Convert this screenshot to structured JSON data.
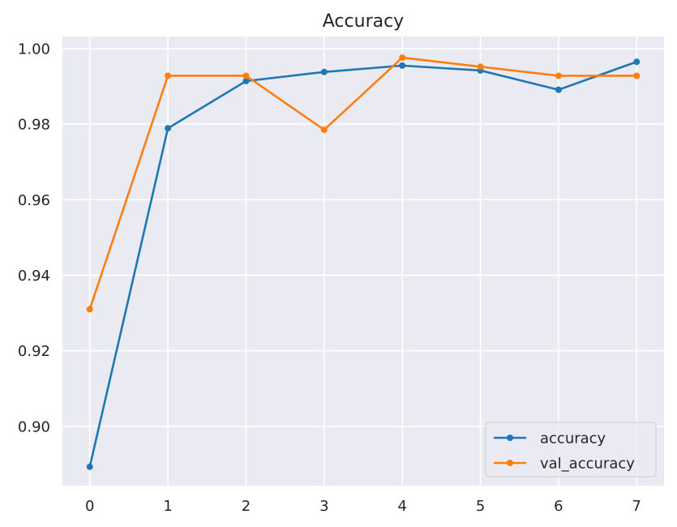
{
  "chart_data": {
    "type": "line",
    "title": "Accuracy",
    "xlabel": "",
    "ylabel": "",
    "x": [
      0,
      1,
      2,
      3,
      4,
      5,
      6,
      7
    ],
    "xlim": [
      -0.35,
      7.35
    ],
    "ylim": [
      0.8843,
      1.0032
    ],
    "x_ticks": [
      0,
      1,
      2,
      3,
      4,
      5,
      6,
      7
    ],
    "y_ticks": [
      0.9,
      0.92,
      0.94,
      0.96,
      0.98,
      1.0
    ],
    "y_tick_labels": [
      "0.90",
      "0.92",
      "0.94",
      "0.96",
      "0.98",
      "1.00"
    ],
    "grid": true,
    "legend_position": "bottom-right",
    "series": [
      {
        "name": "accuracy",
        "color": "#1f77b4",
        "values": [
          0.8893,
          0.9789,
          0.9914,
          0.9938,
          0.9955,
          0.9942,
          0.9891,
          0.9965
        ]
      },
      {
        "name": "val_accuracy",
        "color": "#ff7f0e",
        "values": [
          0.931,
          0.9928,
          0.9928,
          0.9785,
          0.9976,
          0.9952,
          0.9928,
          0.9928
        ]
      }
    ]
  }
}
